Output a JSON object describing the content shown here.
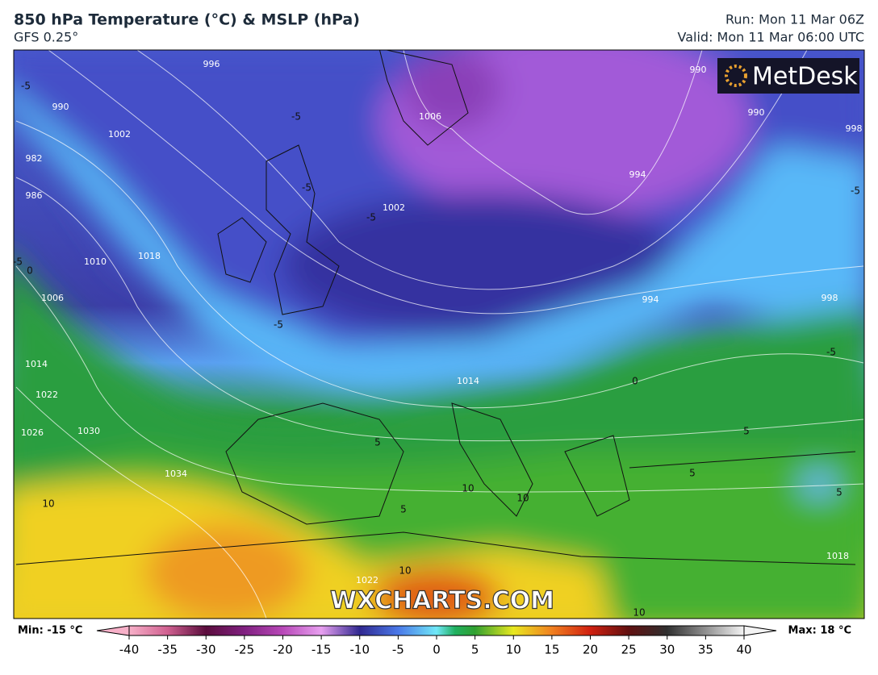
{
  "header": {
    "title": "850 hPa Temperature (°C) & MSLP (hPa)",
    "subtitle": "GFS 0.25°",
    "run": "Run: Mon 11 Mar 06Z",
    "valid": "Valid: Mon 11 Mar 06:00 UTC"
  },
  "logo": "MetDesk",
  "watermark": "WXCHARTS.COM",
  "isobar_labels": [
    990,
    982,
    986,
    1002,
    1018,
    1010,
    1006,
    1014,
    1022,
    1026,
    1030,
    1034,
    1006,
    1002,
    994,
    990,
    990,
    994,
    998,
    998,
    1014,
    1018,
    1022,
    996
  ],
  "temperature_labels": [
    -5,
    -5,
    -5,
    -5,
    -5,
    0,
    -5,
    -5,
    -5,
    0,
    10,
    10,
    10,
    10,
    10,
    5,
    5,
    5,
    5,
    5
  ],
  "colorbar": {
    "min_label": "Min: -15 °C",
    "max_label": "Max: 18 °C",
    "lim": [
      -40,
      40
    ],
    "ticks": [
      -40,
      -35,
      -30,
      -25,
      -20,
      -15,
      -10,
      -5,
      0,
      5,
      10,
      15,
      20,
      25,
      30,
      35,
      40
    ]
  }
}
